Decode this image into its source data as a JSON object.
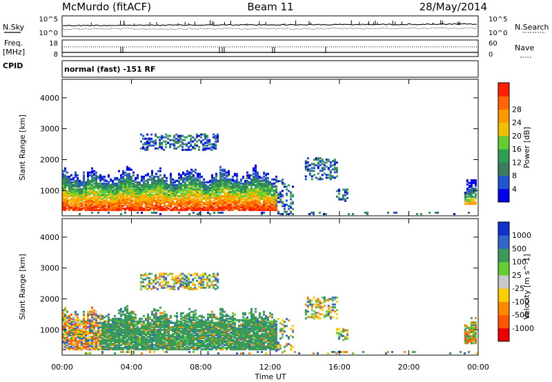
{
  "header": {
    "station": "McMurdo (fitACF)",
    "beam": "Beam 11",
    "date": "28/May/2014"
  },
  "status_panel": {
    "nsky_label": "N.Sky",
    "nsky_top": "10^5",
    "nsky_bottom": "10^0",
    "nsearch_label": "N.Search",
    "nsearch_top": "10^5",
    "nsearch_bottom": "10^0",
    "freq_label": "Freq.",
    "freq_unit": "[MHz]",
    "freq_top": "18",
    "freq_bottom": "8",
    "nave_label": "Nave",
    "nave_top": "60",
    "nave_bottom": "0",
    "cpid_label": "CPID",
    "cpid_text": "normal (fast) -151 RF"
  },
  "colors": {
    "power_scale": [
      "#0000ee",
      "#2255cc",
      "#3a7d5c",
      "#2e9e55",
      "#66cc33",
      "#f0c000",
      "#ff9900",
      "#ff6600",
      "#ff2200"
    ],
    "velocity_scale": [
      "#ee0000",
      "#ff5500",
      "#ff8800",
      "#ffcc00",
      "#c8c8c8",
      "#66cc33",
      "#3a9a5a",
      "#3366cc",
      "#1133cc"
    ]
  },
  "chart_data": [
    {
      "type": "heatmap",
      "name": "power",
      "ylabel": "Slant Range [km]",
      "xlabel": "",
      "colorbar_label": "Power [dB]",
      "colorbar_ticks": [
        "4",
        "8",
        "12",
        "16",
        "20",
        "24",
        "28"
      ],
      "ylim": [
        180,
        4600
      ],
      "yticks": [
        1000,
        2000,
        3000,
        4000
      ],
      "xlim": [
        "00:00",
        "24:00"
      ],
      "xticks": [
        "00:00",
        "04:00",
        "08:00",
        "12:00",
        "16:00",
        "20:00",
        "00:00"
      ]
    },
    {
      "type": "heatmap",
      "name": "velocity",
      "ylabel": "Slant Range [km]",
      "xlabel": "Time UT",
      "colorbar_label": "Velocity [m s^-1]",
      "colorbar_ticks": [
        "-1000",
        "-500",
        "-100",
        "-25",
        "25",
        "100",
        "500",
        "1000"
      ],
      "ylim": [
        180,
        4600
      ],
      "yticks": [
        1000,
        2000,
        3000,
        4000
      ],
      "xlim": [
        "00:00",
        "24:00"
      ],
      "xticks": [
        "00:00",
        "04:00",
        "08:00",
        "12:00",
        "16:00",
        "20:00",
        "00:00"
      ]
    }
  ]
}
